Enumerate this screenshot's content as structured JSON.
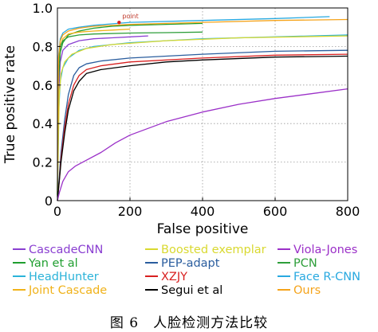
{
  "caption": "图 6　人脸检测方法比较",
  "chart_data": {
    "type": "line",
    "xlabel": "False positive",
    "ylabel": "True positive rate",
    "xlim": [
      0,
      800
    ],
    "ylim": [
      0,
      1.0
    ],
    "xticks": [
      0,
      200,
      400,
      600,
      800
    ],
    "yticks": [
      0,
      0.2,
      0.4,
      0.6,
      0.8,
      1.0
    ],
    "ytick_labels": [
      "0",
      "0.2",
      "0.4",
      "0.6",
      "0.8",
      "1.0"
    ],
    "grid": "dotted",
    "annotation": {
      "text": "point",
      "x": 170,
      "y": 0.925
    },
    "legend_columns": 3,
    "series": [
      {
        "name": "CascadeCNN",
        "color": "#8a3fd1",
        "points": [
          [
            0,
            0.02
          ],
          [
            3,
            0.55
          ],
          [
            8,
            0.72
          ],
          [
            15,
            0.78
          ],
          [
            30,
            0.81
          ],
          [
            60,
            0.83
          ],
          [
            100,
            0.84
          ],
          [
            150,
            0.845
          ],
          [
            200,
            0.85
          ],
          [
            250,
            0.855
          ]
        ]
      },
      {
        "name": "Yan et al",
        "color": "#1f9e2f",
        "points": [
          [
            0,
            0.03
          ],
          [
            3,
            0.62
          ],
          [
            8,
            0.77
          ],
          [
            15,
            0.82
          ],
          [
            30,
            0.86
          ],
          [
            60,
            0.88
          ],
          [
            100,
            0.895
          ],
          [
            150,
            0.905
          ],
          [
            200,
            0.91
          ],
          [
            300,
            0.915
          ],
          [
            400,
            0.92
          ]
        ]
      },
      {
        "name": "HeadHunter",
        "color": "#2bb3d9",
        "points": [
          [
            0,
            0.02
          ],
          [
            3,
            0.45
          ],
          [
            8,
            0.62
          ],
          [
            15,
            0.69
          ],
          [
            30,
            0.74
          ],
          [
            60,
            0.78
          ],
          [
            100,
            0.8
          ],
          [
            200,
            0.82
          ],
          [
            300,
            0.83
          ],
          [
            400,
            0.84
          ],
          [
            600,
            0.85
          ],
          [
            800,
            0.86
          ]
        ]
      },
      {
        "name": "Joint Cascade",
        "color": "#f0b21a",
        "points": [
          [
            0,
            0.03
          ],
          [
            3,
            0.7
          ],
          [
            8,
            0.8
          ],
          [
            15,
            0.84
          ],
          [
            30,
            0.865
          ],
          [
            60,
            0.875
          ],
          [
            100,
            0.88
          ],
          [
            150,
            0.885
          ],
          [
            200,
            0.89
          ]
        ]
      },
      {
        "name": "Boosted exemplar",
        "color": "#d9d930",
        "points": [
          [
            0,
            0.02
          ],
          [
            5,
            0.55
          ],
          [
            10,
            0.66
          ],
          [
            20,
            0.72
          ],
          [
            40,
            0.76
          ],
          [
            80,
            0.79
          ],
          [
            150,
            0.81
          ],
          [
            300,
            0.83
          ],
          [
            500,
            0.845
          ],
          [
            800,
            0.855
          ]
        ]
      },
      {
        "name": "PEP-adapt",
        "color": "#2a5d9e",
        "points": [
          [
            0,
            0.0
          ],
          [
            5,
            0.12
          ],
          [
            10,
            0.25
          ],
          [
            20,
            0.42
          ],
          [
            30,
            0.55
          ],
          [
            45,
            0.65
          ],
          [
            60,
            0.69
          ],
          [
            80,
            0.71
          ],
          [
            120,
            0.725
          ],
          [
            200,
            0.74
          ],
          [
            400,
            0.76
          ],
          [
            600,
            0.775
          ],
          [
            800,
            0.78
          ]
        ]
      },
      {
        "name": "XZJY",
        "color": "#d82020",
        "points": [
          [
            0,
            0.0
          ],
          [
            5,
            0.1
          ],
          [
            10,
            0.22
          ],
          [
            20,
            0.38
          ],
          [
            30,
            0.5
          ],
          [
            45,
            0.6
          ],
          [
            60,
            0.65
          ],
          [
            80,
            0.68
          ],
          [
            120,
            0.7
          ],
          [
            200,
            0.72
          ],
          [
            400,
            0.74
          ],
          [
            600,
            0.755
          ],
          [
            800,
            0.76
          ]
        ]
      },
      {
        "name": "Segui et al",
        "color": "#000000",
        "points": [
          [
            0,
            0.0
          ],
          [
            5,
            0.1
          ],
          [
            10,
            0.2
          ],
          [
            20,
            0.35
          ],
          [
            30,
            0.47
          ],
          [
            45,
            0.57
          ],
          [
            60,
            0.62
          ],
          [
            80,
            0.66
          ],
          [
            120,
            0.68
          ],
          [
            200,
            0.7
          ],
          [
            300,
            0.72
          ],
          [
            400,
            0.73
          ],
          [
            600,
            0.745
          ],
          [
            800,
            0.75
          ]
        ]
      },
      {
        "name": "Viola-Jones",
        "color": "#9b30c8",
        "points": [
          [
            0,
            0.0
          ],
          [
            5,
            0.04
          ],
          [
            15,
            0.1
          ],
          [
            30,
            0.15
          ],
          [
            50,
            0.18
          ],
          [
            80,
            0.21
          ],
          [
            120,
            0.25
          ],
          [
            160,
            0.3
          ],
          [
            200,
            0.34
          ],
          [
            300,
            0.41
          ],
          [
            400,
            0.46
          ],
          [
            500,
            0.5
          ],
          [
            600,
            0.53
          ],
          [
            700,
            0.555
          ],
          [
            800,
            0.58
          ]
        ]
      },
      {
        "name": "PCN",
        "color": "#2e9e3a",
        "points": [
          [
            0,
            0.03
          ],
          [
            3,
            0.7
          ],
          [
            8,
            0.8
          ],
          [
            15,
            0.83
          ],
          [
            30,
            0.85
          ],
          [
            60,
            0.86
          ],
          [
            100,
            0.865
          ],
          [
            200,
            0.87
          ],
          [
            300,
            0.872
          ],
          [
            400,
            0.875
          ]
        ]
      },
      {
        "name": "Face R-CNN",
        "color": "#28a9e0",
        "points": [
          [
            0,
            0.05
          ],
          [
            3,
            0.75
          ],
          [
            8,
            0.84
          ],
          [
            15,
            0.87
          ],
          [
            30,
            0.89
          ],
          [
            60,
            0.9
          ],
          [
            100,
            0.91
          ],
          [
            200,
            0.925
          ],
          [
            400,
            0.935
          ],
          [
            600,
            0.945
          ],
          [
            750,
            0.955
          ]
        ]
      },
      {
        "name": "Ours",
        "color": "#f5a31a",
        "points": [
          [
            0,
            0.05
          ],
          [
            3,
            0.74
          ],
          [
            8,
            0.83
          ],
          [
            15,
            0.86
          ],
          [
            30,
            0.88
          ],
          [
            60,
            0.895
          ],
          [
            100,
            0.905
          ],
          [
            200,
            0.915
          ],
          [
            300,
            0.92
          ],
          [
            400,
            0.925
          ],
          [
            600,
            0.935
          ],
          [
            800,
            0.94
          ]
        ]
      }
    ]
  }
}
